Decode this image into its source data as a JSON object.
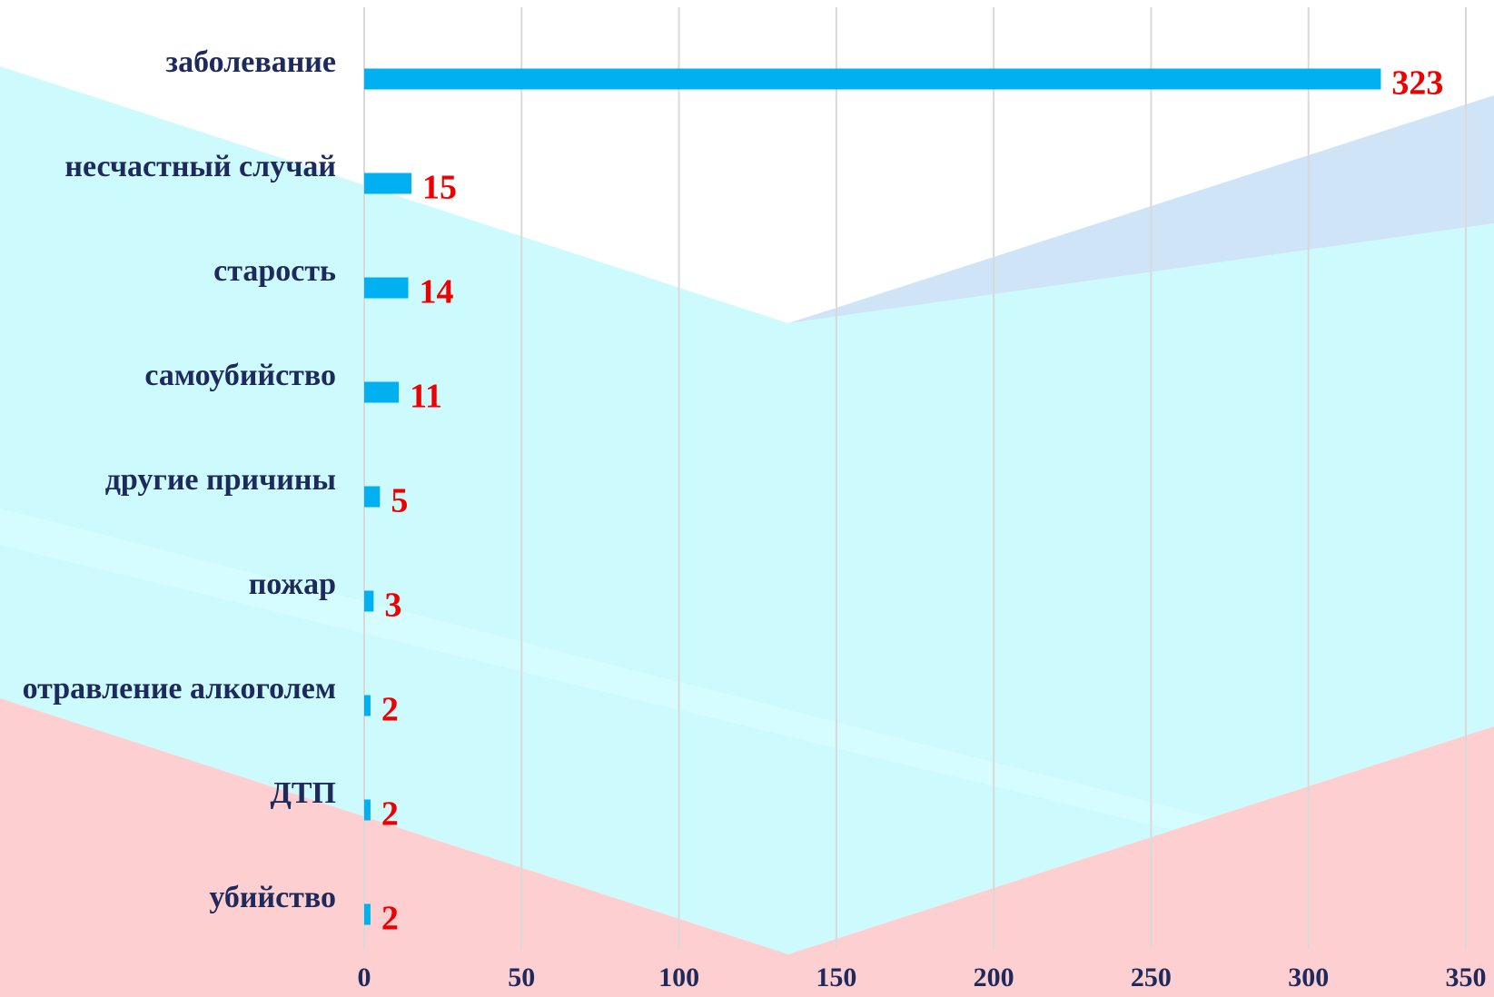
{
  "chart_data": {
    "type": "hbar",
    "categories": [
      "заболевание",
      "несчастный случай",
      "старость",
      "самоубийство",
      "другие причины",
      "пожар",
      "отравление алкоголем",
      "ДТП",
      "убийство"
    ],
    "values": [
      323,
      15,
      14,
      11,
      5,
      3,
      2,
      2,
      2
    ],
    "color": "#00b0f0",
    "xlim": [
      0,
      350
    ],
    "xticks": [
      0,
      50,
      100,
      150,
      200,
      250,
      300,
      350
    ],
    "grid": true
  }
}
